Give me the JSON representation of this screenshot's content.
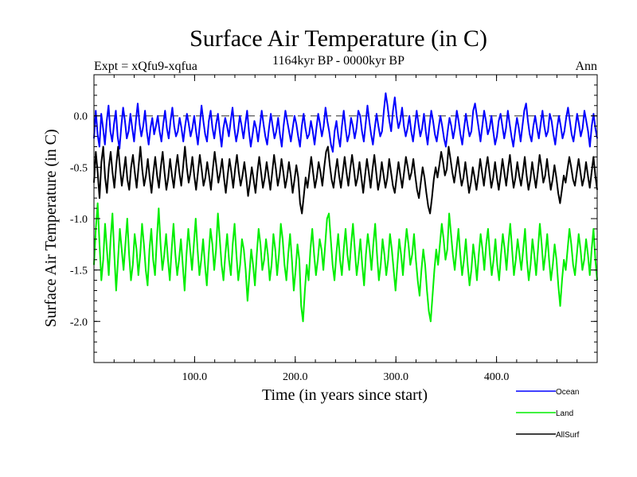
{
  "chart_data": {
    "type": "line",
    "title": "Surface Air Temperature (in C)",
    "subtitle": "1164kyr BP - 0000kyr BP",
    "left_note": "Expt = xQfu9-xqfua",
    "right_note": "Ann",
    "xlabel": "Time (in years since start)",
    "ylabel": "Surface Air Temperature (in C)",
    "xlim": [
      0,
      500
    ],
    "ylim": [
      -2.4,
      0.4
    ],
    "xticks": [
      100,
      200,
      300,
      400
    ],
    "xtick_labels": [
      "100.0",
      "200.0",
      "300.0",
      "400.0"
    ],
    "yticks": [
      0.0,
      -0.5,
      -1.0,
      -1.5,
      -2.0
    ],
    "ytick_labels": [
      "0.0",
      "-0.5",
      "-1.0",
      "-1.5",
      "-2.0"
    ],
    "reference_line": {
      "y": 0.0,
      "style": "dashed"
    },
    "legend_position": "bottom-right",
    "series": [
      {
        "name": "Ocean",
        "color": "#0000ff",
        "values": [
          -0.22,
          0.05,
          -0.18,
          -0.3,
          0.02,
          -0.12,
          -0.28,
          -0.05,
          0.1,
          -0.15,
          -0.25,
          -0.08,
          0.05,
          -0.2,
          -0.32,
          -0.1,
          0.08,
          -0.05,
          -0.22,
          -0.15,
          0.02,
          -0.12,
          -0.25,
          -0.05,
          0.12,
          -0.08,
          -0.2,
          -0.1,
          0.05,
          -0.15,
          -0.28,
          -0.12,
          -0.02,
          -0.18,
          -0.1,
          0.0,
          -0.15,
          -0.25,
          -0.08,
          0.05,
          -0.12,
          -0.22,
          -0.05,
          0.08,
          -0.1,
          -0.2,
          -0.15,
          -0.02,
          -0.12,
          -0.25,
          -0.1,
          0.02,
          -0.08,
          -0.2,
          -0.12,
          0.0,
          -0.15,
          -0.28,
          -0.1,
          0.1,
          -0.05,
          -0.18,
          -0.25,
          -0.05,
          0.05,
          -0.12,
          -0.22,
          -0.08,
          0.02,
          -0.15,
          -0.3,
          -0.12,
          -0.02,
          -0.1,
          -0.2,
          -0.05,
          0.08,
          -0.12,
          -0.25,
          -0.15,
          0.0,
          -0.1,
          -0.22,
          -0.08,
          0.05,
          -0.15,
          -0.3,
          -0.18,
          -0.05,
          -0.12,
          -0.25,
          -0.1,
          0.05,
          -0.08,
          -0.2,
          -0.28,
          -0.12,
          0.02,
          -0.1,
          -0.22,
          -0.15,
          -0.02,
          -0.18,
          -0.3,
          -0.1,
          0.05,
          -0.05,
          -0.15,
          -0.25,
          -0.12,
          0.0,
          -0.08,
          -0.2,
          -0.3,
          -0.1,
          0.02,
          -0.12,
          -0.22,
          -0.18,
          -0.05,
          -0.15,
          -0.28,
          -0.12,
          0.02,
          -0.08,
          -0.2,
          -0.1,
          0.08,
          -0.05,
          -0.15,
          -0.28,
          -0.35,
          -0.15,
          -0.05,
          -0.2,
          -0.3,
          -0.1,
          0.05,
          -0.12,
          -0.25,
          -0.18,
          -0.02,
          -0.1,
          -0.22,
          -0.12,
          0.05,
          0.0,
          -0.15,
          -0.25,
          -0.08,
          0.1,
          -0.05,
          -0.18,
          -0.28,
          -0.12,
          0.02,
          -0.1,
          -0.2,
          -0.15,
          0.05,
          0.22,
          0.1,
          -0.05,
          -0.15,
          0.05,
          0.18,
          0.0,
          -0.12,
          -0.05,
          0.08,
          -0.1,
          -0.2,
          -0.12,
          0.0,
          -0.15,
          -0.25,
          -0.1,
          0.05,
          -0.08,
          -0.2,
          -0.12,
          0.02,
          -0.15,
          -0.28,
          -0.1,
          0.05,
          -0.05,
          -0.18,
          -0.25,
          -0.12,
          0.0,
          -0.1,
          -0.22,
          -0.3,
          -0.15,
          -0.02,
          -0.1,
          -0.22,
          -0.12,
          0.05,
          -0.05,
          -0.18,
          -0.28,
          -0.12,
          0.02,
          -0.1,
          -0.2,
          -0.15,
          0.05,
          0.12,
          0.0,
          -0.12,
          -0.25,
          -0.1,
          0.05,
          -0.05,
          -0.18,
          -0.12,
          0.0,
          -0.15,
          -0.28,
          -0.2,
          -0.05,
          0.02,
          -0.1,
          -0.22,
          -0.12,
          0.05,
          -0.08,
          -0.2,
          -0.3,
          -0.15,
          -0.02,
          -0.12,
          -0.25,
          -0.1,
          0.05,
          0.12,
          -0.05,
          -0.18,
          -0.25,
          -0.1,
          0.0,
          -0.12,
          -0.22,
          -0.08,
          0.05,
          -0.1,
          -0.2,
          -0.15,
          0.02,
          -0.05,
          -0.18,
          -0.28,
          -0.12,
          0.0,
          -0.1,
          -0.22,
          -0.15,
          -0.02,
          0.08,
          -0.05,
          -0.18,
          -0.25,
          -0.12,
          0.02,
          -0.08,
          -0.2,
          -0.12,
          0.05,
          -0.05,
          -0.15,
          -0.3,
          -0.1,
          0.02,
          -0.12,
          -0.22
        ],
        "smoothing": 0
      },
      {
        "name": "Land",
        "color": "#00ee00",
        "values": [
          -1.45,
          -1.1,
          -0.85,
          -1.25,
          -1.6,
          -1.4,
          -1.05,
          -1.3,
          -1.55,
          -1.2,
          -0.95,
          -1.35,
          -1.7,
          -1.4,
          -1.1,
          -1.3,
          -1.5,
          -1.25,
          -1.0,
          -1.35,
          -1.6,
          -1.45,
          -1.15,
          -1.3,
          -1.55,
          -1.35,
          -1.05,
          -1.25,
          -1.5,
          -1.65,
          -1.3,
          -1.1,
          -1.4,
          -1.55,
          -1.2,
          -0.9,
          -1.25,
          -1.5,
          -1.35,
          -1.15,
          -1.4,
          -1.6,
          -1.3,
          -1.05,
          -1.35,
          -1.55,
          -1.4,
          -1.2,
          -1.45,
          -1.7,
          -1.35,
          -1.1,
          -1.3,
          -1.5,
          -1.25,
          -1.0,
          -1.3,
          -1.55,
          -1.4,
          -1.2,
          -1.45,
          -1.65,
          -1.35,
          -1.1,
          -1.25,
          -1.5,
          -1.3,
          -0.95,
          -1.2,
          -1.45,
          -1.6,
          -1.35,
          -1.15,
          -1.4,
          -1.55,
          -1.25,
          -1.05,
          -1.35,
          -1.6,
          -1.45,
          -1.2,
          -1.3,
          -1.5,
          -1.8,
          -1.55,
          -1.3,
          -1.45,
          -1.65,
          -1.35,
          -1.1,
          -1.25,
          -1.5,
          -1.4,
          -1.2,
          -1.35,
          -1.6,
          -1.45,
          -1.15,
          -1.3,
          -1.55,
          -1.35,
          -1.05,
          -1.2,
          -1.45,
          -1.6,
          -1.35,
          -1.15,
          -1.4,
          -1.7,
          -1.5,
          -1.25,
          -1.4,
          -1.85,
          -2.0,
          -1.7,
          -1.45,
          -1.6,
          -1.3,
          -1.1,
          -1.35,
          -1.55,
          -1.4,
          -1.2,
          -1.3,
          -1.5,
          -1.25,
          -1.0,
          -0.95,
          -1.2,
          -1.45,
          -1.6,
          -1.35,
          -1.15,
          -1.4,
          -1.55,
          -1.3,
          -1.1,
          -1.35,
          -1.5,
          -1.25,
          -1.05,
          -1.3,
          -1.55,
          -1.4,
          -1.2,
          -1.45,
          -1.65,
          -1.35,
          -1.15,
          -1.3,
          -1.5,
          -1.25,
          -1.05,
          -1.35,
          -1.6,
          -1.45,
          -1.2,
          -1.35,
          -1.55,
          -1.4,
          -1.15,
          -1.3,
          -1.5,
          -1.7,
          -1.45,
          -1.2,
          -1.35,
          -1.55,
          -1.3,
          -1.1,
          -1.25,
          -1.45,
          -1.35,
          -1.15,
          -1.4,
          -1.6,
          -1.75,
          -1.5,
          -1.3,
          -1.45,
          -1.7,
          -1.9,
          -2.0,
          -1.75,
          -1.5,
          -1.3,
          -1.45,
          -1.25,
          -1.05,
          -1.2,
          -1.4,
          -1.3,
          -0.95,
          -1.15,
          -1.35,
          -1.5,
          -1.3,
          -1.1,
          -1.35,
          -1.55,
          -1.4,
          -1.2,
          -1.45,
          -1.65,
          -1.5,
          -1.25,
          -1.4,
          -1.6,
          -1.35,
          -1.15,
          -1.3,
          -1.5,
          -1.25,
          -1.1,
          -1.35,
          -1.55,
          -1.4,
          -1.2,
          -1.45,
          -1.6,
          -1.35,
          -1.15,
          -1.3,
          -1.5,
          -1.25,
          -1.05,
          -1.3,
          -1.55,
          -1.4,
          -1.2,
          -1.35,
          -1.5,
          -1.3,
          -1.1,
          -1.4,
          -1.6,
          -1.45,
          -1.2,
          -1.35,
          -1.55,
          -1.3,
          -1.05,
          -1.25,
          -1.5,
          -1.35,
          -1.15,
          -1.4,
          -1.6,
          -1.45,
          -1.25,
          -1.4,
          -1.65,
          -1.85,
          -1.6,
          -1.4,
          -1.5,
          -1.3,
          -1.1,
          -1.25,
          -1.45,
          -1.55,
          -1.35,
          -1.15,
          -1.3,
          -1.5,
          -1.4,
          -1.2,
          -1.35,
          -1.55,
          -1.3,
          -1.1,
          -1.4,
          -1.6
        ],
        "smoothing": 0
      },
      {
        "name": "AllSurf",
        "color": "#000000",
        "values": [
          -0.65,
          -0.35,
          -0.55,
          -0.8,
          -0.45,
          -0.3,
          -0.6,
          -0.75,
          -0.5,
          -0.35,
          -0.55,
          -0.7,
          -0.48,
          -0.3,
          -0.5,
          -0.68,
          -0.55,
          -0.4,
          -0.62,
          -0.72,
          -0.5,
          -0.38,
          -0.55,
          -0.7,
          -0.5,
          -0.3,
          -0.52,
          -0.68,
          -0.58,
          -0.42,
          -0.6,
          -0.75,
          -0.55,
          -0.4,
          -0.58,
          -0.7,
          -0.5,
          -0.35,
          -0.55,
          -0.72,
          -0.6,
          -0.42,
          -0.58,
          -0.7,
          -0.52,
          -0.38,
          -0.55,
          -0.68,
          -0.5,
          -0.3,
          -0.5,
          -0.65,
          -0.55,
          -0.4,
          -0.58,
          -0.72,
          -0.55,
          -0.38,
          -0.52,
          -0.68,
          -0.6,
          -0.45,
          -0.58,
          -0.72,
          -0.52,
          -0.35,
          -0.5,
          -0.65,
          -0.55,
          -0.42,
          -0.6,
          -0.75,
          -0.58,
          -0.42,
          -0.55,
          -0.7,
          -0.52,
          -0.38,
          -0.55,
          -0.68,
          -0.58,
          -0.45,
          -0.6,
          -0.78,
          -0.65,
          -0.5,
          -0.62,
          -0.75,
          -0.55,
          -0.4,
          -0.55,
          -0.7,
          -0.6,
          -0.45,
          -0.58,
          -0.72,
          -0.55,
          -0.38,
          -0.52,
          -0.68,
          -0.58,
          -0.42,
          -0.55,
          -0.7,
          -0.6,
          -0.45,
          -0.58,
          -0.75,
          -0.62,
          -0.48,
          -0.6,
          -0.85,
          -0.95,
          -0.78,
          -0.6,
          -0.7,
          -0.55,
          -0.4,
          -0.55,
          -0.7,
          -0.6,
          -0.45,
          -0.55,
          -0.68,
          -0.5,
          -0.35,
          -0.3,
          -0.48,
          -0.62,
          -0.7,
          -0.55,
          -0.42,
          -0.58,
          -0.7,
          -0.55,
          -0.4,
          -0.55,
          -0.68,
          -0.52,
          -0.38,
          -0.52,
          -0.68,
          -0.6,
          -0.45,
          -0.6,
          -0.75,
          -0.58,
          -0.42,
          -0.55,
          -0.7,
          -0.52,
          -0.38,
          -0.55,
          -0.72,
          -0.62,
          -0.45,
          -0.58,
          -0.7,
          -0.6,
          -0.42,
          -0.55,
          -0.68,
          -0.75,
          -0.6,
          -0.45,
          -0.58,
          -0.7,
          -0.55,
          -0.4,
          -0.5,
          -0.62,
          -0.55,
          -0.42,
          -0.58,
          -0.72,
          -0.8,
          -0.65,
          -0.5,
          -0.6,
          -0.75,
          -0.88,
          -0.95,
          -0.8,
          -0.62,
          -0.5,
          -0.6,
          -0.48,
          -0.35,
          -0.45,
          -0.58,
          -0.52,
          -0.3,
          -0.42,
          -0.55,
          -0.65,
          -0.52,
          -0.4,
          -0.55,
          -0.68,
          -0.6,
          -0.45,
          -0.6,
          -0.75,
          -0.65,
          -0.5,
          -0.6,
          -0.72,
          -0.58,
          -0.42,
          -0.55,
          -0.68,
          -0.52,
          -0.4,
          -0.55,
          -0.7,
          -0.6,
          -0.45,
          -0.6,
          -0.72,
          -0.58,
          -0.42,
          -0.55,
          -0.68,
          -0.52,
          -0.38,
          -0.55,
          -0.7,
          -0.6,
          -0.45,
          -0.58,
          -0.68,
          -0.55,
          -0.4,
          -0.58,
          -0.72,
          -0.62,
          -0.45,
          -0.58,
          -0.7,
          -0.55,
          -0.38,
          -0.5,
          -0.65,
          -0.58,
          -0.42,
          -0.58,
          -0.72,
          -0.62,
          -0.48,
          -0.6,
          -0.75,
          -0.85,
          -0.72,
          -0.58,
          -0.65,
          -0.52,
          -0.4,
          -0.5,
          -0.62,
          -0.68,
          -0.55,
          -0.42,
          -0.55,
          -0.68,
          -0.6,
          -0.45,
          -0.58,
          -0.7,
          -0.55,
          -0.4,
          -0.58,
          -0.72
        ],
        "smoothing": 0
      }
    ]
  }
}
